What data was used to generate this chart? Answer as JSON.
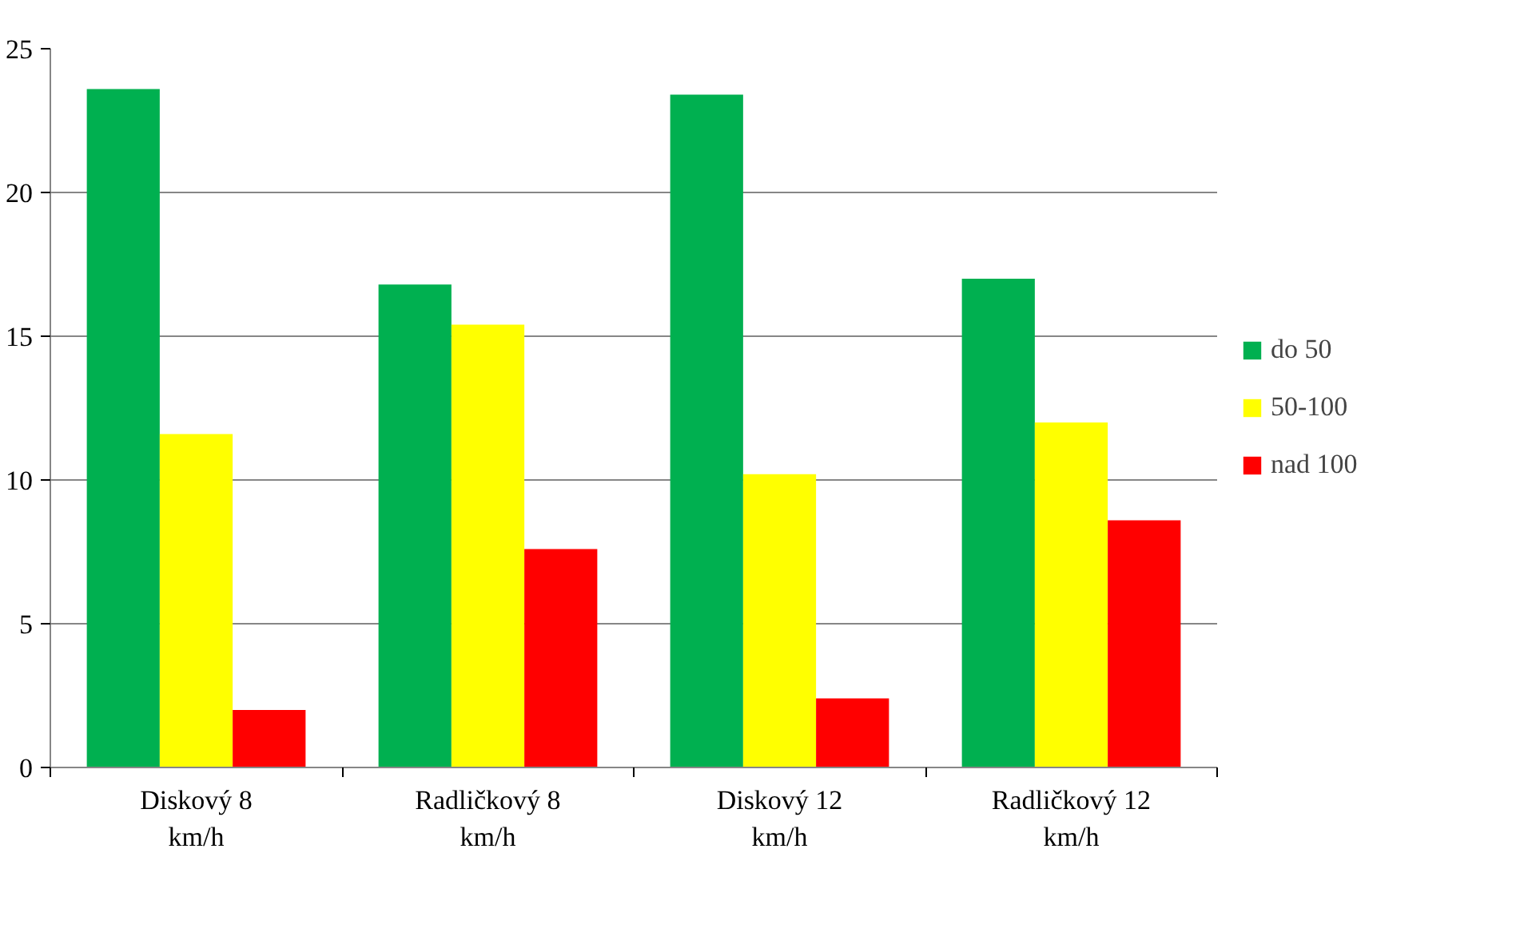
{
  "chart_data": {
    "type": "bar",
    "categories": [
      "Diskový 8 km/h",
      "Radličkový 8 km/h",
      "Diskový 12 km/h",
      "Radličkový 12 km/h"
    ],
    "series": [
      {
        "name": "do 50",
        "color": "#00b050",
        "values": [
          23.6,
          16.8,
          23.4,
          17.0
        ]
      },
      {
        "name": "50-100",
        "color": "#ffff00",
        "values": [
          11.6,
          15.4,
          10.2,
          12.0
        ]
      },
      {
        "name": "nad 100",
        "color": "#ff0000",
        "values": [
          2.0,
          7.6,
          2.4,
          8.6
        ]
      }
    ],
    "ylim": [
      0,
      25
    ],
    "yticks": [
      0,
      5,
      10,
      15,
      20,
      25
    ],
    "grid": "y",
    "legend": "right"
  }
}
